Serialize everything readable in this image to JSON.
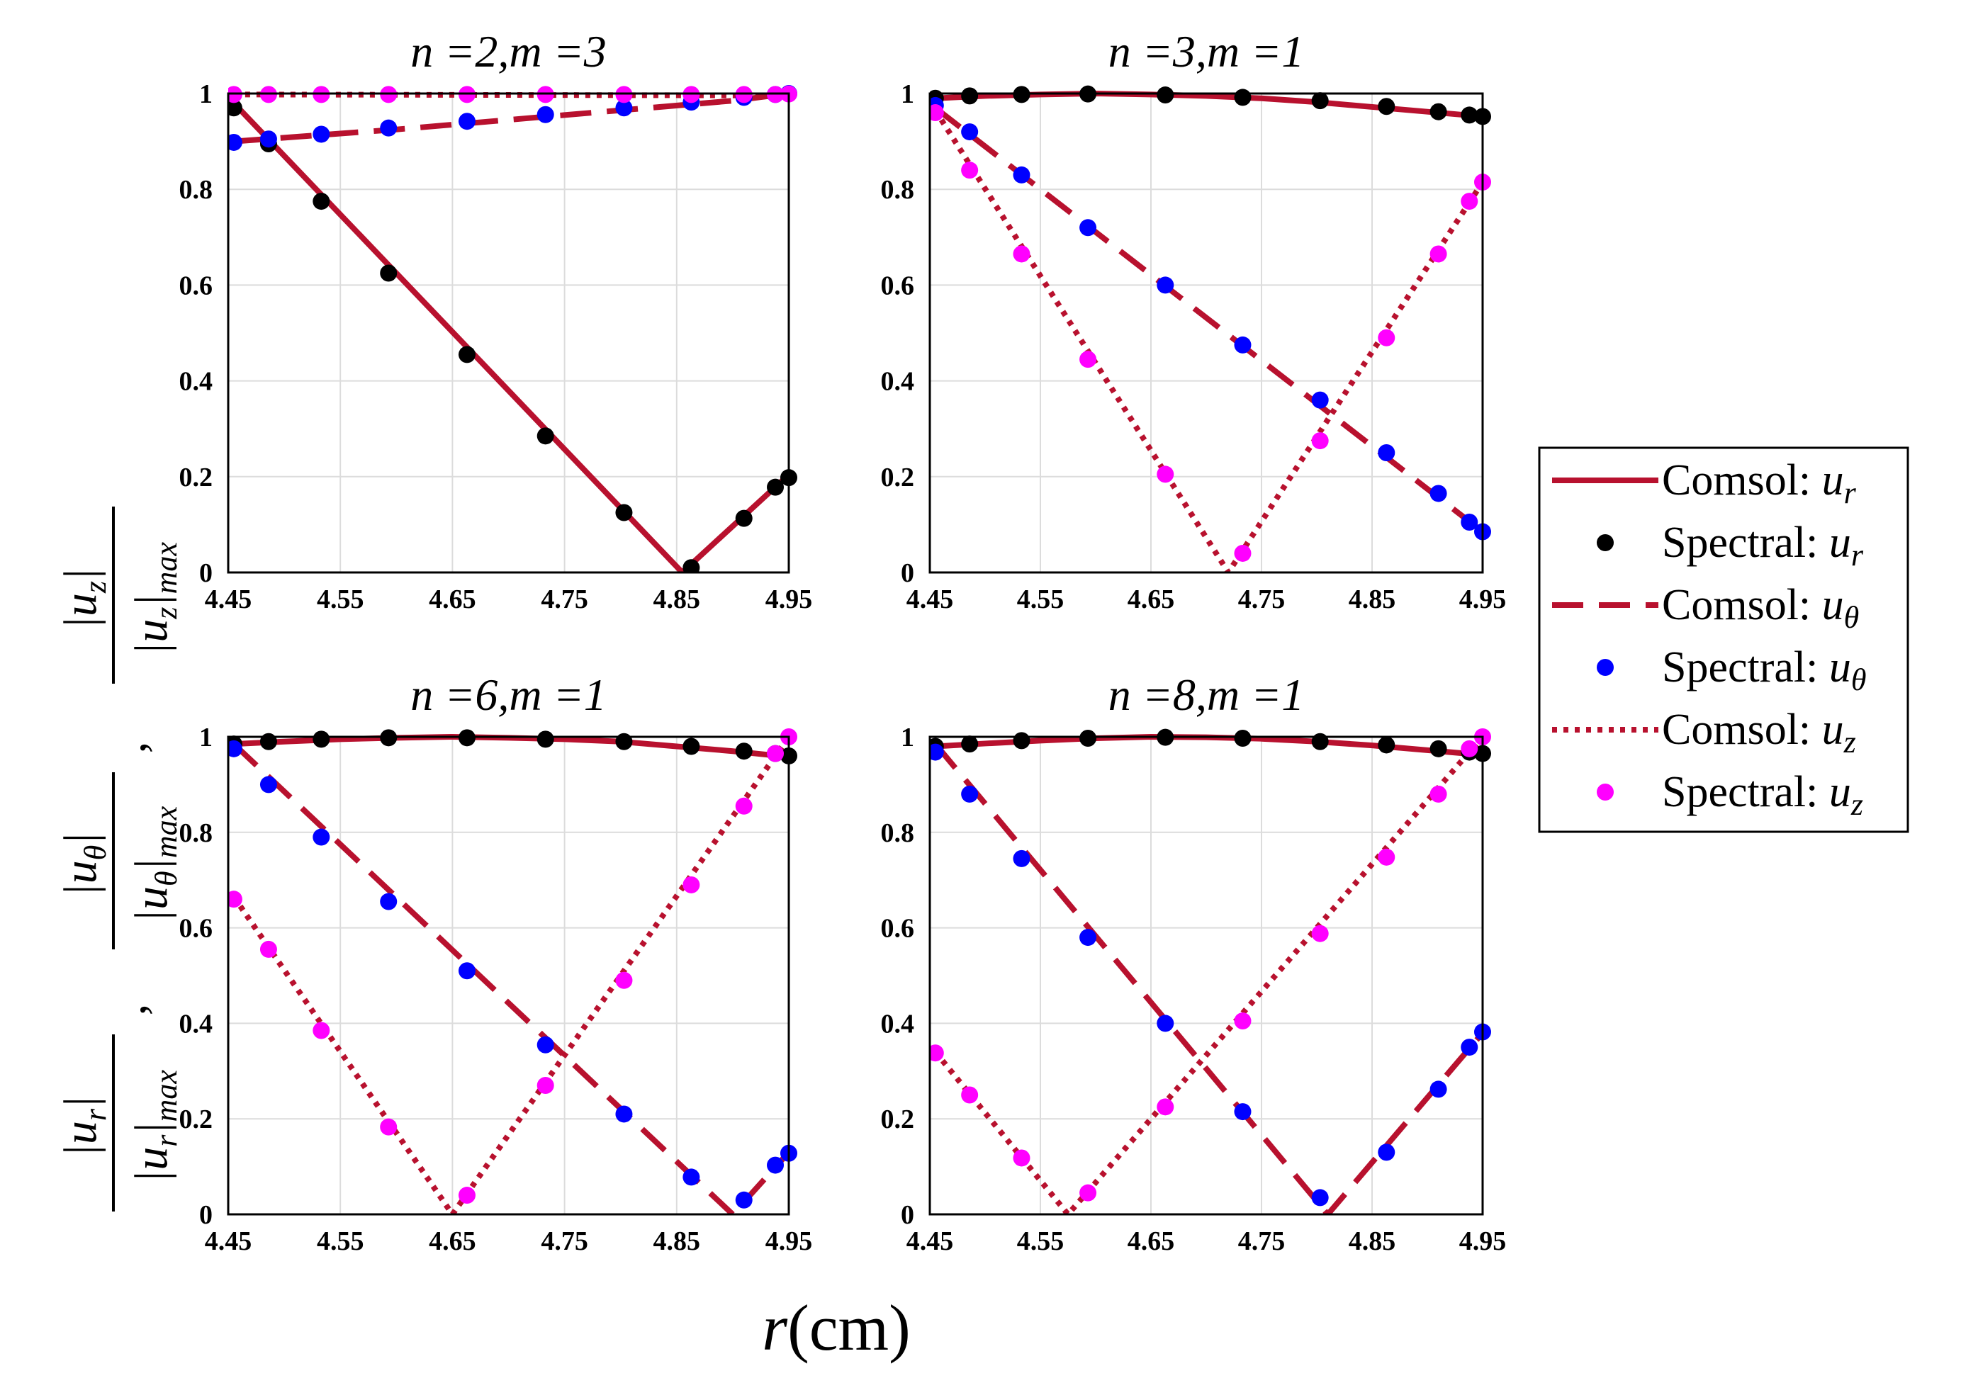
{
  "colors": {
    "comsol": "#b8112e",
    "spectral_ur": "#000000",
    "spectral_utheta": "#0000ff",
    "spectral_uz": "#ff00ff",
    "grid": "#dcdcdc"
  },
  "figure": {
    "xlabel_var": "r",
    "xlabel_unit": "(cm)",
    "ylabel_parts": {
      "ur_num": "|u",
      "ur_sub": "r",
      "ur_den_sub": "r",
      "max": "max",
      "utheta_sub": "θ",
      "uz_sub": "z",
      "separator": ","
    }
  },
  "legend": {
    "entries": [
      {
        "label": "Comsol: ",
        "sym": "u",
        "sub": "r",
        "style": "solid"
      },
      {
        "label": "Spectral: ",
        "sym": "u",
        "sub": "r",
        "style": "dot-black"
      },
      {
        "label": "Comsol: ",
        "sym": "u",
        "sub": "θ",
        "style": "dashed"
      },
      {
        "label": "Spectral: ",
        "sym": "u",
        "sub": "θ",
        "style": "dot-blue"
      },
      {
        "label": "Comsol: ",
        "sym": "u",
        "sub": "z",
        "style": "dotted"
      },
      {
        "label": "Spectral: ",
        "sym": "u",
        "sub": "z",
        "style": "dot-magenta"
      }
    ]
  },
  "chart_data": [
    {
      "type": "line",
      "title": "n =2,m =3",
      "xlim": [
        4.45,
        4.95
      ],
      "ylim": [
        0,
        1
      ],
      "xticks": [
        "4.45",
        "4.55",
        "4.65",
        "4.75",
        "4.85",
        "4.95"
      ],
      "yticks": [
        "0",
        "0.2",
        "0.4",
        "0.6",
        "0.8",
        "1"
      ],
      "grid": true,
      "series": [
        {
          "name": "Comsol: ur",
          "style": "solid",
          "x": [
            4.455,
            4.855,
            4.948
          ],
          "y": [
            0.98,
            0.0,
            0.2
          ]
        },
        {
          "name": "Spectral: ur",
          "style": "dot-black",
          "x": [
            4.455,
            4.486,
            4.533,
            4.593,
            4.663,
            4.733,
            4.803,
            4.863,
            4.91,
            4.938,
            4.95
          ],
          "y": [
            0.97,
            0.895,
            0.775,
            0.625,
            0.455,
            0.285,
            0.125,
            0.01,
            0.113,
            0.178,
            0.198
          ]
        },
        {
          "name": "Comsol: utheta",
          "style": "dashed",
          "x": [
            4.455,
            4.6,
            4.75,
            4.9,
            4.95
          ],
          "y": [
            0.9,
            0.925,
            0.955,
            0.985,
            1.0
          ]
        },
        {
          "name": "Spectral: utheta",
          "style": "dot-blue",
          "x": [
            4.455,
            4.486,
            4.533,
            4.593,
            4.663,
            4.733,
            4.803,
            4.863,
            4.91,
            4.938,
            4.95
          ],
          "y": [
            0.898,
            0.905,
            0.915,
            0.928,
            0.942,
            0.956,
            0.97,
            0.982,
            0.992,
            0.998,
            1.0
          ]
        },
        {
          "name": "Comsol: uz",
          "style": "dotted",
          "x": [
            4.455,
            4.95
          ],
          "y": [
            0.998,
            0.996
          ]
        },
        {
          "name": "Spectral: uz",
          "style": "dot-magenta",
          "x": [
            4.455,
            4.486,
            4.533,
            4.593,
            4.663,
            4.733,
            4.803,
            4.863,
            4.91,
            4.938,
            4.95
          ],
          "y": [
            0.998,
            0.998,
            0.998,
            0.998,
            0.998,
            0.998,
            0.998,
            0.998,
            0.998,
            0.998,
            0.999
          ]
        }
      ]
    },
    {
      "type": "line",
      "title": "n =3,m =1",
      "xlim": [
        4.45,
        4.95
      ],
      "ylim": [
        0,
        1
      ],
      "xticks": [
        "4.45",
        "4.55",
        "4.65",
        "4.75",
        "4.85",
        "4.95"
      ],
      "yticks": [
        "0",
        "0.2",
        "0.4",
        "0.6",
        "0.8",
        "1"
      ],
      "grid": true,
      "series": [
        {
          "name": "Comsol: ur",
          "style": "solid",
          "x": [
            4.455,
            4.5,
            4.55,
            4.6,
            4.65,
            4.7,
            4.75,
            4.8,
            4.85,
            4.9,
            4.95
          ],
          "y": [
            0.99,
            0.995,
            0.998,
            1.0,
            0.998,
            0.995,
            0.99,
            0.982,
            0.972,
            0.962,
            0.952
          ]
        },
        {
          "name": "Spectral: ur",
          "style": "dot-black",
          "x": [
            4.455,
            4.486,
            4.533,
            4.593,
            4.663,
            4.733,
            4.803,
            4.863,
            4.91,
            4.938,
            4.95
          ],
          "y": [
            0.99,
            0.995,
            0.998,
            0.999,
            0.997,
            0.992,
            0.985,
            0.973,
            0.962,
            0.955,
            0.952
          ]
        },
        {
          "name": "Comsol: utheta",
          "style": "dashed",
          "x": [
            4.455,
            4.95
          ],
          "y": [
            0.97,
            0.085
          ]
        },
        {
          "name": "Spectral: utheta",
          "style": "dot-blue",
          "x": [
            4.455,
            4.486,
            4.533,
            4.593,
            4.663,
            4.733,
            4.803,
            4.863,
            4.91,
            4.938,
            4.95
          ],
          "y": [
            0.975,
            0.92,
            0.83,
            0.72,
            0.6,
            0.475,
            0.36,
            0.25,
            0.165,
            0.105,
            0.085
          ]
        },
        {
          "name": "Comsol: uz",
          "style": "dotted",
          "x": [
            4.455,
            4.72,
            4.95
          ],
          "y": [
            0.965,
            0.0,
            0.815
          ]
        },
        {
          "name": "Spectral: uz",
          "style": "dot-magenta",
          "x": [
            4.455,
            4.486,
            4.533,
            4.593,
            4.663,
            4.733,
            4.803,
            4.863,
            4.91,
            4.938,
            4.95
          ],
          "y": [
            0.96,
            0.84,
            0.665,
            0.445,
            0.205,
            0.04,
            0.275,
            0.49,
            0.665,
            0.775,
            0.815
          ]
        }
      ]
    },
    {
      "type": "line",
      "title": "n =6,m =1",
      "xlim": [
        4.45,
        4.95
      ],
      "ylim": [
        0,
        1
      ],
      "xticks": [
        "4.45",
        "4.55",
        "4.65",
        "4.75",
        "4.85",
        "4.95"
      ],
      "yticks": [
        "0",
        "0.2",
        "0.4",
        "0.6",
        "0.8",
        "1"
      ],
      "grid": true,
      "series": [
        {
          "name": "Comsol: ur",
          "style": "solid",
          "x": [
            4.455,
            4.5,
            4.55,
            4.6,
            4.65,
            4.7,
            4.75,
            4.8,
            4.85,
            4.9,
            4.95
          ],
          "y": [
            0.985,
            0.99,
            0.995,
            0.998,
            1.0,
            0.998,
            0.995,
            0.99,
            0.98,
            0.97,
            0.958
          ]
        },
        {
          "name": "Spectral: ur",
          "style": "dot-black",
          "x": [
            4.455,
            4.486,
            4.533,
            4.593,
            4.663,
            4.733,
            4.803,
            4.863,
            4.91,
            4.938,
            4.95
          ],
          "y": [
            0.985,
            0.99,
            0.995,
            0.998,
            0.998,
            0.995,
            0.99,
            0.98,
            0.97,
            0.965,
            0.96
          ]
        },
        {
          "name": "Comsol: utheta",
          "style": "dashed",
          "x": [
            4.455,
            4.9,
            4.95
          ],
          "y": [
            0.985,
            0.0,
            0.13
          ]
        },
        {
          "name": "Spectral: utheta",
          "style": "dot-blue",
          "x": [
            4.455,
            4.486,
            4.533,
            4.593,
            4.663,
            4.733,
            4.803,
            4.863,
            4.91,
            4.938,
            4.95
          ],
          "y": [
            0.975,
            0.9,
            0.79,
            0.655,
            0.51,
            0.355,
            0.21,
            0.078,
            0.03,
            0.103,
            0.128
          ]
        },
        {
          "name": "Comsol: uz",
          "style": "dotted",
          "x": [
            4.455,
            4.65,
            4.95
          ],
          "y": [
            0.665,
            0.0,
            1.0
          ]
        },
        {
          "name": "Spectral: uz",
          "style": "dot-magenta",
          "x": [
            4.455,
            4.486,
            4.533,
            4.593,
            4.663,
            4.733,
            4.803,
            4.863,
            4.91,
            4.938,
            4.95
          ],
          "y": [
            0.66,
            0.555,
            0.385,
            0.183,
            0.04,
            0.27,
            0.49,
            0.69,
            0.855,
            0.965,
            1.0
          ]
        }
      ]
    },
    {
      "type": "line",
      "title": "n =8,m =1",
      "xlim": [
        4.45,
        4.95
      ],
      "ylim": [
        0,
        1
      ],
      "xticks": [
        "4.45",
        "4.55",
        "4.65",
        "4.75",
        "4.85",
        "4.95"
      ],
      "yticks": [
        "0",
        "0.2",
        "0.4",
        "0.6",
        "0.8",
        "1"
      ],
      "grid": true,
      "series": [
        {
          "name": "Comsol: ur",
          "style": "solid",
          "x": [
            4.455,
            4.5,
            4.55,
            4.6,
            4.65,
            4.7,
            4.75,
            4.8,
            4.85,
            4.9,
            4.95
          ],
          "y": [
            0.98,
            0.986,
            0.992,
            0.997,
            1.0,
            0.999,
            0.996,
            0.99,
            0.982,
            0.972,
            0.962
          ]
        },
        {
          "name": "Spectral: ur",
          "style": "dot-black",
          "x": [
            4.455,
            4.486,
            4.533,
            4.593,
            4.663,
            4.733,
            4.803,
            4.863,
            4.91,
            4.938,
            4.95
          ],
          "y": [
            0.98,
            0.985,
            0.992,
            0.997,
            0.999,
            0.997,
            0.99,
            0.983,
            0.975,
            0.968,
            0.965
          ]
        },
        {
          "name": "Comsol: utheta",
          "style": "dashed",
          "x": [
            4.455,
            4.81,
            4.95
          ],
          "y": [
            0.985,
            0.0,
            0.38
          ]
        },
        {
          "name": "Spectral: utheta",
          "style": "dot-blue",
          "x": [
            4.455,
            4.486,
            4.533,
            4.593,
            4.663,
            4.733,
            4.803,
            4.863,
            4.91,
            4.938,
            4.95
          ],
          "y": [
            0.968,
            0.88,
            0.745,
            0.58,
            0.4,
            0.215,
            0.035,
            0.13,
            0.262,
            0.35,
            0.382
          ]
        },
        {
          "name": "Comsol: uz",
          "style": "dotted",
          "x": [
            4.455,
            4.575,
            4.95
          ],
          "y": [
            0.34,
            0.0,
            1.0
          ]
        },
        {
          "name": "Spectral: uz",
          "style": "dot-magenta",
          "x": [
            4.455,
            4.486,
            4.533,
            4.593,
            4.663,
            4.733,
            4.803,
            4.863,
            4.91,
            4.938,
            4.95
          ],
          "y": [
            0.338,
            0.25,
            0.118,
            0.045,
            0.225,
            0.405,
            0.588,
            0.748,
            0.88,
            0.975,
            1.0
          ]
        }
      ]
    }
  ]
}
